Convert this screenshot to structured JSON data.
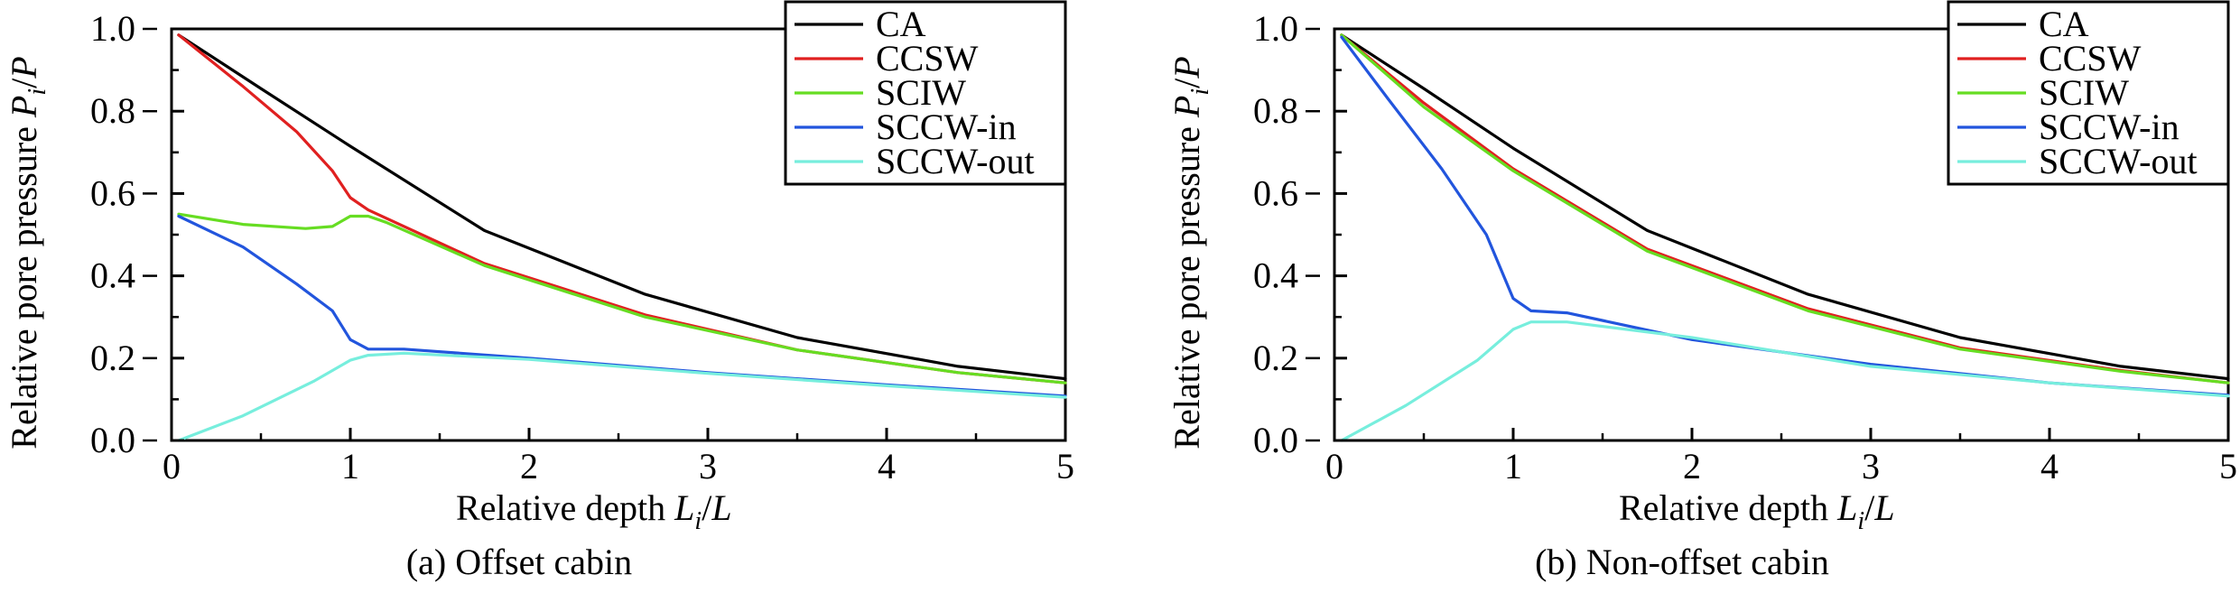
{
  "chart_data": [
    {
      "type": "line",
      "caption": "(a) Offset cabin",
      "xlabel": "Relative depth L_i/L",
      "ylabel": "Relative pore pressure P_i/P",
      "xlim": [
        0,
        5
      ],
      "ylim": [
        0,
        1.0
      ],
      "xticks": [
        "0",
        "1",
        "2",
        "3",
        "4",
        "5"
      ],
      "yticks": [
        "0.0",
        "0.2",
        "0.4",
        "0.6",
        "0.8",
        "1.0"
      ],
      "grid": false,
      "legend_position": "top-right",
      "series": [
        {
          "name": "CA",
          "color": "#000000",
          "points": [
            [
              0.04,
              0.985
            ],
            [
              0.5,
              0.855
            ],
            [
              1.0,
              0.715
            ],
            [
              1.75,
              0.51
            ],
            [
              2.65,
              0.355
            ],
            [
              3.5,
              0.25
            ],
            [
              4.4,
              0.18
            ],
            [
              5.0,
              0.15
            ]
          ]
        },
        {
          "name": "CCSW",
          "color": "#e02020",
          "points": [
            [
              0.04,
              0.985
            ],
            [
              0.4,
              0.86
            ],
            [
              0.7,
              0.75
            ],
            [
              0.9,
              0.655
            ],
            [
              1.0,
              0.59
            ],
            [
              1.1,
              0.56
            ],
            [
              1.75,
              0.43
            ],
            [
              2.65,
              0.305
            ],
            [
              3.5,
              0.22
            ],
            [
              4.4,
              0.165
            ],
            [
              5.0,
              0.14
            ]
          ]
        },
        {
          "name": "SCIW",
          "color": "#66dd22",
          "points": [
            [
              0.04,
              0.55
            ],
            [
              0.4,
              0.525
            ],
            [
              0.75,
              0.515
            ],
            [
              0.9,
              0.52
            ],
            [
              1.0,
              0.545
            ],
            [
              1.1,
              0.545
            ],
            [
              1.2,
              0.53
            ],
            [
              1.75,
              0.425
            ],
            [
              2.65,
              0.3
            ],
            [
              3.5,
              0.22
            ],
            [
              4.4,
              0.165
            ],
            [
              5.0,
              0.14
            ]
          ]
        },
        {
          "name": "SCCW-in",
          "color": "#2255dd",
          "points": [
            [
              0.04,
              0.545
            ],
            [
              0.4,
              0.47
            ],
            [
              0.7,
              0.38
            ],
            [
              0.9,
              0.315
            ],
            [
              1.0,
              0.245
            ],
            [
              1.1,
              0.222
            ],
            [
              1.3,
              0.222
            ],
            [
              2.0,
              0.2
            ],
            [
              3.0,
              0.165
            ],
            [
              4.0,
              0.135
            ],
            [
              5.0,
              0.108
            ]
          ]
        },
        {
          "name": "SCCW-out",
          "color": "#77eedd",
          "points": [
            [
              0.04,
              0.0
            ],
            [
              0.4,
              0.06
            ],
            [
              0.8,
              0.145
            ],
            [
              1.0,
              0.195
            ],
            [
              1.1,
              0.207
            ],
            [
              1.3,
              0.212
            ],
            [
              2.0,
              0.197
            ],
            [
              3.0,
              0.163
            ],
            [
              4.0,
              0.133
            ],
            [
              5.0,
              0.105
            ]
          ]
        }
      ]
    },
    {
      "type": "line",
      "caption": "(b) Non-offset cabin",
      "xlabel": "Relative depth L_i/L",
      "ylabel": "Relative pore pressure P_i/P",
      "xlim": [
        0,
        5
      ],
      "ylim": [
        0,
        1.0
      ],
      "xticks": [
        "0",
        "1",
        "2",
        "3",
        "4",
        "5"
      ],
      "yticks": [
        "0.0",
        "0.2",
        "0.4",
        "0.6",
        "0.8",
        "1.0"
      ],
      "grid": false,
      "legend_position": "top-right",
      "series": [
        {
          "name": "CA",
          "color": "#000000",
          "points": [
            [
              0.04,
              0.985
            ],
            [
              0.5,
              0.855
            ],
            [
              1.0,
              0.71
            ],
            [
              1.75,
              0.51
            ],
            [
              2.65,
              0.355
            ],
            [
              3.5,
              0.25
            ],
            [
              4.4,
              0.18
            ],
            [
              5.0,
              0.15
            ]
          ]
        },
        {
          "name": "CCSW",
          "color": "#e02020",
          "points": [
            [
              0.04,
              0.985
            ],
            [
              0.5,
              0.82
            ],
            [
              1.0,
              0.66
            ],
            [
              1.75,
              0.465
            ],
            [
              2.65,
              0.32
            ],
            [
              3.5,
              0.225
            ],
            [
              4.4,
              0.17
            ],
            [
              5.0,
              0.14
            ]
          ]
        },
        {
          "name": "SCIW",
          "color": "#66dd22",
          "points": [
            [
              0.04,
              0.985
            ],
            [
              0.5,
              0.81
            ],
            [
              1.0,
              0.655
            ],
            [
              1.75,
              0.46
            ],
            [
              2.65,
              0.315
            ],
            [
              3.5,
              0.222
            ],
            [
              4.4,
              0.168
            ],
            [
              5.0,
              0.14
            ]
          ]
        },
        {
          "name": "SCCW-in",
          "color": "#2255dd",
          "points": [
            [
              0.04,
              0.98
            ],
            [
              0.3,
              0.83
            ],
            [
              0.6,
              0.66
            ],
            [
              0.85,
              0.5
            ],
            [
              1.0,
              0.345
            ],
            [
              1.1,
              0.315
            ],
            [
              1.3,
              0.31
            ],
            [
              2.0,
              0.245
            ],
            [
              3.0,
              0.185
            ],
            [
              4.0,
              0.14
            ],
            [
              5.0,
              0.11
            ]
          ]
        },
        {
          "name": "SCCW-out",
          "color": "#77eedd",
          "points": [
            [
              0.04,
              0.0
            ],
            [
              0.4,
              0.085
            ],
            [
              0.8,
              0.195
            ],
            [
              1.0,
              0.27
            ],
            [
              1.1,
              0.288
            ],
            [
              1.3,
              0.288
            ],
            [
              2.0,
              0.25
            ],
            [
              3.0,
              0.18
            ],
            [
              4.0,
              0.14
            ],
            [
              5.0,
              0.108
            ]
          ]
        }
      ]
    }
  ]
}
